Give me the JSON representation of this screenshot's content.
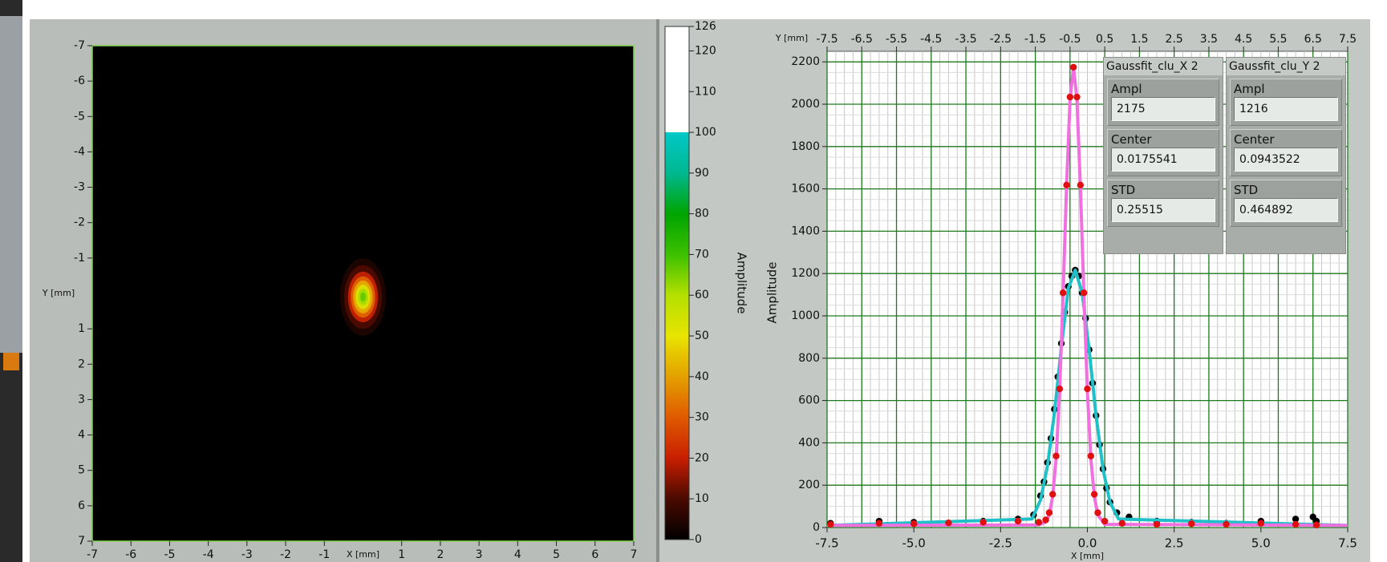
{
  "chart_data": [
    {
      "type": "heatmap",
      "xlabel": "X [mm]",
      "ylabel": "Y [mm]",
      "xlim": [
        -7,
        7
      ],
      "ylim": [
        -7,
        7
      ],
      "y_inverted": true,
      "xticks": [
        -7,
        -6,
        -5,
        -4,
        -3,
        -2,
        -1,
        1,
        2,
        3,
        4,
        5,
        6,
        7
      ],
      "yticks": [
        -7,
        -6,
        -5,
        -4,
        -3,
        -2,
        -1,
        1,
        2,
        3,
        4,
        5,
        6,
        7
      ],
      "background": "#000000",
      "frame_color": "#7fd34a",
      "spot": {
        "x": 0,
        "y": 0.1,
        "sigma_x": 0.25,
        "sigma_y": 0.46,
        "peak": 70
      }
    },
    {
      "type": "colorbar",
      "label": "Amplitude",
      "ylim": [
        0,
        126
      ],
      "yticks": [
        0,
        10,
        20,
        30,
        40,
        50,
        60,
        70,
        80,
        90,
        100,
        110,
        120,
        126
      ],
      "colormap": [
        {
          "value": 0,
          "color": "#000000"
        },
        {
          "value": 10,
          "color": "#4a0a00"
        },
        {
          "value": 20,
          "color": "#c81e00"
        },
        {
          "value": 30,
          "color": "#e05a00"
        },
        {
          "value": 40,
          "color": "#e4a000"
        },
        {
          "value": 50,
          "color": "#e8e400"
        },
        {
          "value": 60,
          "color": "#b4e000"
        },
        {
          "value": 70,
          "color": "#3cc000"
        },
        {
          "value": 80,
          "color": "#00a400"
        },
        {
          "value": 90,
          "color": "#00b890"
        },
        {
          "value": 100,
          "color": "#00c8c8"
        },
        {
          "value": 100,
          "color": "#ffffff"
        },
        {
          "value": 126,
          "color": "#ffffff"
        }
      ]
    },
    {
      "type": "line",
      "xlabel": "X [mm]",
      "ylabel": "Amplitude",
      "x2label": "Y [mm]",
      "xlim": [
        -7.5,
        7.5
      ],
      "xticks": [
        -7.5,
        {
          "value": -5,
          "label": "-5.0"
        },
        -2.5,
        {
          "value": 0,
          "label": "0.0"
        },
        2.5,
        {
          "value": 5,
          "label": "5.0"
        },
        7.5
      ],
      "x2lim": [
        -7.5,
        7.5
      ],
      "x2ticks": [
        -7.5,
        -6.5,
        -5.5,
        -4.5,
        -3.5,
        -2.5,
        -1.5,
        -0.5,
        0.5,
        1.5,
        2.5,
        3.5,
        4.5,
        5.5,
        6.5,
        7.5
      ],
      "ylim": [
        0,
        2250
      ],
      "yticks": [
        0,
        200,
        400,
        600,
        800,
        1000,
        1200,
        1400,
        1600,
        1800,
        2000,
        2200
      ],
      "grid": true,
      "grid_color": "#1f7a1f",
      "minor_grid": true,
      "series": [
        {
          "style": "markers",
          "color": "#000000",
          "x": [
            -7.4,
            -6,
            -5,
            -4,
            -3,
            -2,
            -1.55,
            -1.35,
            -1.25,
            -1.15,
            -1.05,
            -0.95,
            -0.85,
            -0.75,
            -0.65,
            -0.55,
            -0.45,
            -0.35,
            -0.25,
            -0.15,
            -0.05,
            0.05,
            0.15,
            0.25,
            0.35,
            0.45,
            0.55,
            0.65,
            0.85,
            1.2,
            2,
            3,
            4,
            5,
            6,
            6.5,
            6.6
          ],
          "values": [
            20,
            30,
            25,
            20,
            30,
            40,
            60,
            150,
            216,
            307,
            421,
            559,
            712,
            870,
            1018,
            1139,
            1188,
            1216,
            1188,
            1109,
            988,
            840,
            682,
            529,
            391,
            277,
            186,
            120,
            70,
            50,
            30,
            25,
            20,
            30,
            40,
            50,
            30
          ]
        },
        {
          "style": "line",
          "color": "#20c0c8",
          "x": [
            -7.5,
            -1.6,
            -1.35,
            -1.15,
            -0.95,
            -0.75,
            -0.55,
            -0.35,
            -0.15,
            0.05,
            0.25,
            0.45,
            0.65,
            0.9,
            7.5
          ],
          "values": [
            10,
            40,
            130,
            290,
            540,
            850,
            1130,
            1216,
            1109,
            840,
            529,
            277,
            120,
            40,
            10
          ]
        },
        {
          "style": "line",
          "color": "#f070e0",
          "x": [
            -7.5,
            -1.4,
            -1.2,
            -1.1,
            -1.0,
            -0.9,
            -0.8,
            -0.7,
            -0.6,
            -0.5,
            -0.4,
            -0.3,
            -0.2,
            -0.1,
            0,
            0.1,
            0.2,
            0.3,
            0.5,
            7.5
          ],
          "values": [
            10,
            12,
            26,
            60,
            147,
            328,
            645,
            1099,
            1608,
            2024,
            2175,
            2024,
            1608,
            1099,
            645,
            328,
            147,
            60,
            15,
            10
          ]
        },
        {
          "style": "markers",
          "color": "#e01010",
          "x": [
            -7.4,
            -6,
            -5,
            -4,
            -3,
            -2,
            -1.4,
            -1.2,
            -1.1,
            -1.0,
            -0.9,
            -0.8,
            -0.7,
            -0.6,
            -0.5,
            -0.4,
            -0.3,
            -0.2,
            -0.1,
            0,
            0.1,
            0.2,
            0.3,
            0.5,
            1,
            2,
            3,
            4,
            5,
            6,
            6.6
          ],
          "values": [
            15,
            20,
            18,
            22,
            25,
            30,
            25,
            36,
            70,
            157,
            338,
            655,
            1109,
            1618,
            2034,
            2175,
            2034,
            1618,
            1109,
            655,
            338,
            157,
            70,
            30,
            20,
            15,
            18,
            15,
            20,
            15,
            12
          ]
        }
      ]
    }
  ],
  "fit_panels": [
    {
      "title": "Gaussfit_clu_X 2",
      "fields": [
        {
          "label": "Ampl",
          "value": "2175"
        },
        {
          "label": "Center",
          "value": "0.0175541"
        },
        {
          "label": "STD",
          "value": "0.25515"
        }
      ]
    },
    {
      "title": "Gaussfit_clu_Y 2",
      "fields": [
        {
          "label": "Ampl",
          "value": "1216"
        },
        {
          "label": "Center",
          "value": "0.0943522"
        },
        {
          "label": "STD",
          "value": "0.464892"
        }
      ]
    }
  ]
}
